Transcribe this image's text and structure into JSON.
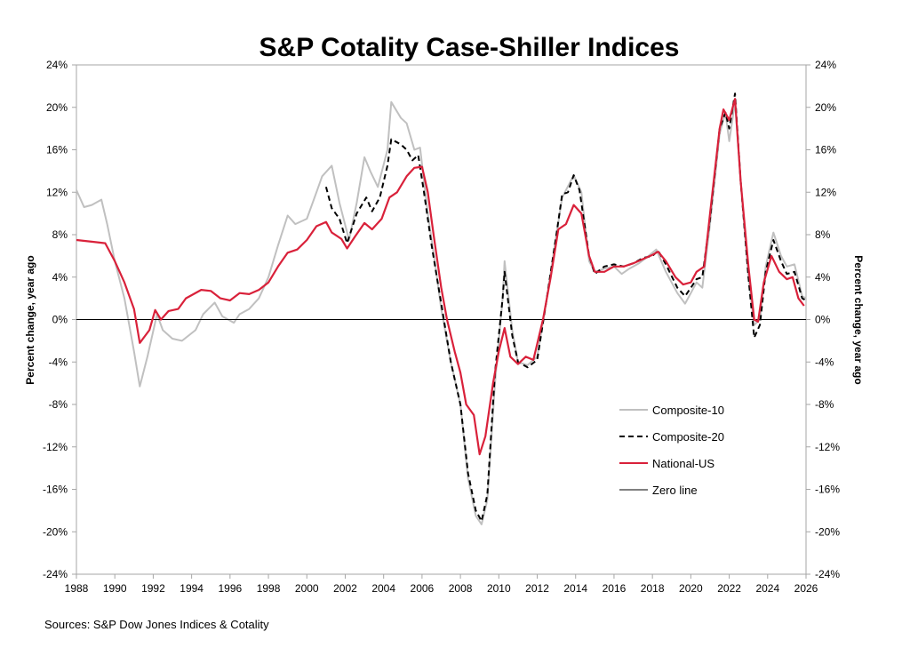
{
  "chart_data": {
    "type": "line",
    "title": "S&P Cotality Case-Shiller Indices",
    "ylabel": "Percent change, year ago",
    "ylabel_right": "Percent change, year ago",
    "source": "Sources:  S&P Dow Jones Indices & Cotality",
    "xlim": [
      1988,
      2026
    ],
    "ylim": [
      -24,
      24
    ],
    "x_ticks": [
      "1988",
      "1990",
      "1992",
      "1994",
      "1996",
      "1998",
      "2000",
      "2002",
      "2004",
      "2006",
      "2008",
      "2010",
      "2012",
      "2014",
      "2016",
      "2018",
      "2020",
      "2022",
      "2024",
      "2026"
    ],
    "y_ticks": [
      "24%",
      "20%",
      "16%",
      "12%",
      "8%",
      "4%",
      "0%",
      "-4%",
      "-8%",
      "-12%",
      "-16%",
      "-20%",
      "-24%"
    ],
    "grid": false,
    "legend_position": "lower-right",
    "series": [
      {
        "name": "Composite-10",
        "color": "#c0c0c0",
        "style": "solid",
        "x": [
          1988,
          1988.4,
          1988.8,
          1989.3,
          1989.6,
          1990,
          1990.5,
          1991,
          1991.3,
          1991.7,
          1992.2,
          1992.5,
          1993,
          1993.5,
          1994.2,
          1994.6,
          1995.2,
          1995.6,
          1996.2,
          1996.5,
          1997,
          1997.5,
          1998,
          1998.5,
          1999,
          1999.4,
          2000,
          2000.5,
          2000.8,
          2001.3,
          2001.7,
          2002.2,
          2002.6,
          2003,
          2003.3,
          2003.7,
          2004.2,
          2004.4,
          2004.9,
          2005.2,
          2005.6,
          2005.9,
          2006.3,
          2006.7,
          2007,
          2007.5,
          2008,
          2008.4,
          2008.8,
          2009.1,
          2009.4,
          2009.8,
          2010.2,
          2010.3,
          2010.7,
          2011,
          2011.5,
          2012,
          2012.5,
          2013,
          2013.3,
          2013.9,
          2014.3,
          2014.7,
          2015,
          2015.5,
          2016,
          2016.4,
          2016.8,
          2017.3,
          2017.8,
          2018.2,
          2018.7,
          2019.3,
          2019.7,
          2020,
          2020.3,
          2020.6,
          2021,
          2021.5,
          2021.8,
          2022,
          2022.3,
          2022.6,
          2023,
          2023.3,
          2023.6,
          2023.9,
          2024.3,
          2024.7,
          2025,
          2025.4,
          2025.8,
          2026
        ],
        "y": [
          12.2,
          10.6,
          10.8,
          11.3,
          9.0,
          5.5,
          2.0,
          -3.0,
          -6.3,
          -3.5,
          0.5,
          -1.0,
          -1.8,
          -2.0,
          -1.0,
          0.5,
          1.6,
          0.3,
          -0.3,
          0.5,
          1.0,
          2.0,
          4.0,
          7.0,
          9.8,
          9.0,
          9.5,
          12.0,
          13.5,
          14.5,
          11.0,
          7.5,
          11.0,
          15.3,
          14.0,
          12.5,
          16.0,
          20.5,
          19.0,
          18.5,
          16.0,
          16.2,
          10.0,
          5.0,
          1.0,
          -4.0,
          -8.0,
          -15.0,
          -18.5,
          -19.3,
          -17.0,
          -6.0,
          2.0,
          5.5,
          -1.0,
          -4.0,
          -4.3,
          -3.5,
          2.0,
          8.0,
          11.5,
          13.6,
          12.0,
          5.5,
          4.5,
          4.8,
          5.0,
          4.3,
          4.8,
          5.3,
          6.0,
          6.6,
          4.5,
          2.5,
          1.5,
          2.5,
          3.5,
          3.0,
          9.0,
          17.5,
          19.5,
          16.8,
          20.5,
          13.0,
          4.0,
          -0.5,
          0.0,
          5.0,
          8.2,
          6.0,
          5.0,
          5.2,
          2.2,
          2.0
        ]
      },
      {
        "name": "Composite-20",
        "color": "#000000",
        "style": "dashed",
        "x": [
          2001,
          2001.3,
          2001.7,
          2002.1,
          2002.6,
          2003.1,
          2003.4,
          2003.8,
          2004.2,
          2004.4,
          2004.9,
          2005.2,
          2005.5,
          2005.8,
          2006.1,
          2006.5,
          2007,
          2007.5,
          2008,
          2008.4,
          2008.8,
          2009.1,
          2009.4,
          2009.8,
          2010.2,
          2010.3,
          2010.7,
          2011,
          2011.5,
          2012,
          2012.5,
          2013,
          2013.3,
          2013.6,
          2013.9,
          2014.2,
          2014.7,
          2015,
          2015.5,
          2016,
          2016.5,
          2017,
          2017.5,
          2018,
          2018.3,
          2018.7,
          2019.3,
          2019.7,
          2020,
          2020.3,
          2020.6,
          2021,
          2021.5,
          2021.8,
          2022,
          2022.3,
          2022.6,
          2023,
          2023.3,
          2023.6,
          2023.9,
          2024.3,
          2024.7,
          2025,
          2025.4,
          2025.8,
          2026
        ],
        "y": [
          12.5,
          10.5,
          9.5,
          7.2,
          10.0,
          11.5,
          10.2,
          11.5,
          14.5,
          17.0,
          16.5,
          16.0,
          15.0,
          15.5,
          12.0,
          7.0,
          1.5,
          -4.0,
          -8.0,
          -14.5,
          -18.0,
          -19.0,
          -16.5,
          -5.0,
          2.0,
          4.5,
          -1.5,
          -4.0,
          -4.5,
          -3.8,
          2.0,
          8.0,
          11.8,
          12.0,
          13.6,
          12.2,
          6.0,
          4.3,
          5.0,
          5.2,
          5.0,
          5.3,
          5.8,
          6.0,
          6.5,
          5.2,
          3.0,
          2.2,
          3.0,
          3.8,
          4.0,
          9.5,
          18.0,
          19.5,
          18.0,
          21.3,
          13.0,
          4.0,
          -1.7,
          -0.5,
          4.5,
          7.5,
          5.5,
          4.3,
          4.5,
          2.0,
          1.8
        ]
      },
      {
        "name": "National-US",
        "color": "#d9213a",
        "style": "solid",
        "x": [
          1988,
          1989,
          1989.5,
          1990,
          1990.5,
          1991,
          1991.3,
          1991.8,
          1992.1,
          1992.4,
          1992.8,
          1993.3,
          1993.7,
          1994.5,
          1995,
          1995.5,
          1996,
          1996.5,
          1997,
          1997.5,
          1998,
          1998.5,
          1999,
          1999.5,
          2000,
          2000.5,
          2001,
          2001.3,
          2001.8,
          2002.1,
          2002.5,
          2003,
          2003.4,
          2003.9,
          2004.3,
          2004.7,
          2005.2,
          2005.6,
          2006,
          2006.3,
          2006.6,
          2007,
          2007.3,
          2007.7,
          2008,
          2008.3,
          2008.7,
          2009,
          2009.3,
          2009.7,
          2010,
          2010.3,
          2010.6,
          2011,
          2011.4,
          2011.8,
          2012.3,
          2012.7,
          2013.1,
          2013.5,
          2013.9,
          2014.3,
          2014.7,
          2015,
          2015.5,
          2016,
          2016.5,
          2017,
          2017.5,
          2018,
          2018.3,
          2018.7,
          2019.2,
          2019.6,
          2020,
          2020.3,
          2020.7,
          2021,
          2021.5,
          2021.7,
          2022,
          2022.3,
          2022.6,
          2023,
          2023.3,
          2023.5,
          2023.8,
          2024.2,
          2024.6,
          2025,
          2025.3,
          2025.6,
          2025.9
        ],
        "y": [
          7.5,
          7.3,
          7.2,
          5.5,
          3.5,
          1.0,
          -2.2,
          -1.0,
          0.9,
          0.0,
          0.8,
          1.0,
          2.0,
          2.8,
          2.7,
          2.0,
          1.8,
          2.5,
          2.4,
          2.8,
          3.5,
          5.0,
          6.3,
          6.6,
          7.5,
          8.8,
          9.2,
          8.2,
          7.6,
          6.7,
          7.8,
          9.1,
          8.5,
          9.5,
          11.5,
          12.0,
          13.5,
          14.3,
          14.4,
          12.0,
          8.0,
          3.0,
          0.0,
          -3.0,
          -5.0,
          -8.0,
          -9.0,
          -12.7,
          -11.0,
          -6.0,
          -3.0,
          -0.8,
          -3.5,
          -4.2,
          -3.5,
          -3.8,
          0.0,
          4.0,
          8.5,
          9.0,
          10.8,
          10.0,
          6.0,
          4.5,
          4.5,
          5.0,
          5.0,
          5.3,
          5.7,
          6.1,
          6.4,
          5.5,
          4.0,
          3.3,
          3.5,
          4.5,
          5.0,
          10.0,
          18.0,
          19.8,
          18.8,
          20.8,
          13.0,
          5.0,
          0.0,
          -0.2,
          3.5,
          6.0,
          4.5,
          3.8,
          4.0,
          2.0,
          1.3
        ]
      },
      {
        "name": "Zero line",
        "color": "#000000",
        "style": "solid",
        "x": [
          1988,
          2026
        ],
        "y": [
          0,
          0
        ]
      }
    ]
  }
}
